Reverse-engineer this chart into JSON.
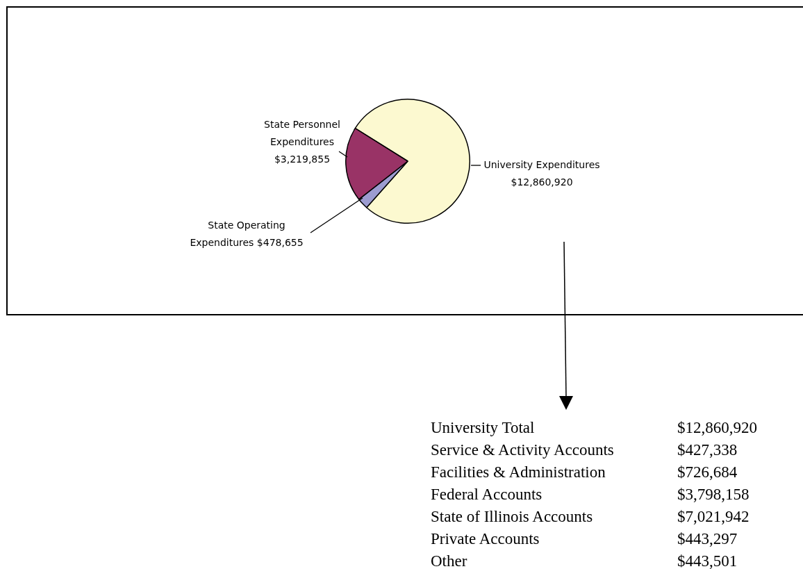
{
  "chart_data": [
    {
      "type": "pie",
      "categories": [
        "University Expenditures",
        "State Operating Expenditures",
        "State Personnel Expenditures"
      ],
      "values": [
        12860920,
        478655,
        3219855
      ],
      "value_labels": [
        "$12,860,920",
        "$478,655",
        "$3,219,855"
      ],
      "colors": [
        "#fcf9d0",
        "#9c9cd0",
        "#993366"
      ],
      "legend": false
    },
    {
      "type": "other",
      "categories": [
        "University Total",
        "Service & Activity Accounts",
        "Facilities & Administration",
        "Federal Accounts",
        "State of Illinois Accounts",
        "Private Accounts",
        "Other"
      ],
      "value_labels": [
        "$12,860,920",
        "$427,338",
        "$726,684",
        "$3,798,158",
        "$7,021,942",
        "$443,297",
        "$443,501"
      ]
    }
  ]
}
